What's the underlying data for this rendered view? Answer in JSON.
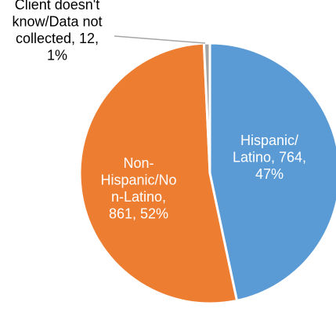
{
  "chart_data": {
    "type": "pie",
    "title": "",
    "colors": {
      "Hispanic/Latino": "#5b9bd5",
      "Non-Hispanic/Non-Latino": "#ed7d31",
      "Client doesn't know/Data not collected": "#a5a5a5",
      "slice_border": "#ffffff",
      "leader_line": "#a6a6a6",
      "inside_text": "#ffffff",
      "outside_text": "#000000"
    },
    "slices": [
      {
        "category": "Hispanic/Latino",
        "value": 764,
        "percent": 47,
        "label_lines": [
          "Hispanic/",
          "Latino, 764,",
          "47%"
        ]
      },
      {
        "category": "Non-Hispanic/Non-Latino",
        "value": 861,
        "percent": 52,
        "label_lines": [
          "Non-",
          "Hispanic/No",
          "n-Latino,",
          "861, 52%"
        ]
      },
      {
        "category": "Client doesn't know/Data not collected",
        "value": 12,
        "percent": 1,
        "label_lines": [
          "Client doesn't",
          "know/Data not",
          "collected, 12,",
          "1%"
        ]
      }
    ]
  }
}
